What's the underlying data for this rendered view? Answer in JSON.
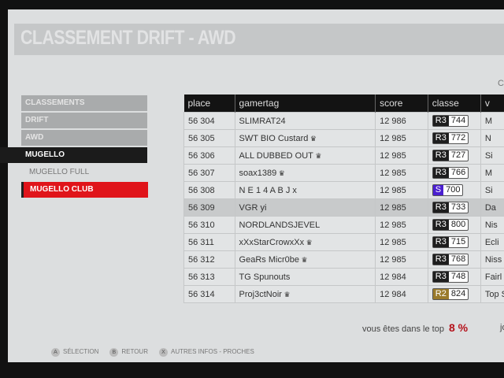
{
  "title": "CLASSEMENT DRIFT - AWD",
  "corner_letter": "C",
  "menu": [
    {
      "label": "CLASSEMENTS",
      "state": "parent"
    },
    {
      "label": "DRIFT",
      "state": "parent"
    },
    {
      "label": "AWD",
      "state": "parent"
    },
    {
      "label": "MUGELLO",
      "state": "current"
    },
    {
      "label": "MUGELLO FULL",
      "state": "option"
    },
    {
      "label": "MUGELLO CLUB",
      "state": "selected"
    }
  ],
  "table": {
    "headers": [
      "place",
      "gamertag",
      "score",
      "classe",
      "v"
    ],
    "rows": [
      {
        "place": "56 304",
        "gamertag": "SLIMRAT24",
        "crown": false,
        "score": "12 986",
        "class": "R3",
        "pi": "744",
        "vehicle": "M"
      },
      {
        "place": "56 305",
        "gamertag": "SWT BIO Custard",
        "crown": true,
        "score": "12 985",
        "class": "R3",
        "pi": "772",
        "vehicle": "N"
      },
      {
        "place": "56 306",
        "gamertag": "ALL DUBBED OUT",
        "crown": true,
        "score": "12 985",
        "class": "R3",
        "pi": "727",
        "vehicle": "Si"
      },
      {
        "place": "56 307",
        "gamertag": "soax1389",
        "crown": true,
        "score": "12 985",
        "class": "R3",
        "pi": "766",
        "vehicle": "M"
      },
      {
        "place": "56 308",
        "gamertag": "N E 1 4 A B J x",
        "crown": false,
        "score": "12 985",
        "class": "S",
        "pi": "700",
        "vehicle": "Si"
      },
      {
        "place": "56 309",
        "gamertag": "VGR yi",
        "crown": false,
        "score": "12 985",
        "class": "R3",
        "pi": "733",
        "vehicle": "Da",
        "highlight": true
      },
      {
        "place": "56 310",
        "gamertag": "NORDLANDSJEVEL",
        "crown": false,
        "score": "12 985",
        "class": "R3",
        "pi": "800",
        "vehicle": "Nis"
      },
      {
        "place": "56 311",
        "gamertag": "xXxStarCrowxXx",
        "crown": true,
        "score": "12 985",
        "class": "R3",
        "pi": "715",
        "vehicle": "Ecli"
      },
      {
        "place": "56 312",
        "gamertag": "GeaRs Micr0be",
        "crown": true,
        "score": "12 985",
        "class": "R3",
        "pi": "768",
        "vehicle": "Niss"
      },
      {
        "place": "56 313",
        "gamertag": "TG Spunouts",
        "crown": false,
        "score": "12 984",
        "class": "R3",
        "pi": "748",
        "vehicle": "Fairl"
      },
      {
        "place": "56 314",
        "gamertag": "Proj3ctNoir",
        "crown": true,
        "score": "12 984",
        "class": "R2",
        "pi": "824",
        "vehicle": "Top S"
      }
    ]
  },
  "class_colors": {
    "R3": "#1e1e1e",
    "R2": "#9a7a2a",
    "S": "#4a1fd0"
  },
  "crown_glyph": "♛",
  "top_text": "vous êtes dans le top",
  "top_value": "8 %",
  "right_cut_text": "jou",
  "footer": [
    {
      "button": "A",
      "label": "SÉLECTION"
    },
    {
      "button": "B",
      "label": "RETOUR"
    },
    {
      "button": "X",
      "label": "AUTRES INFOS - PROCHES"
    }
  ]
}
